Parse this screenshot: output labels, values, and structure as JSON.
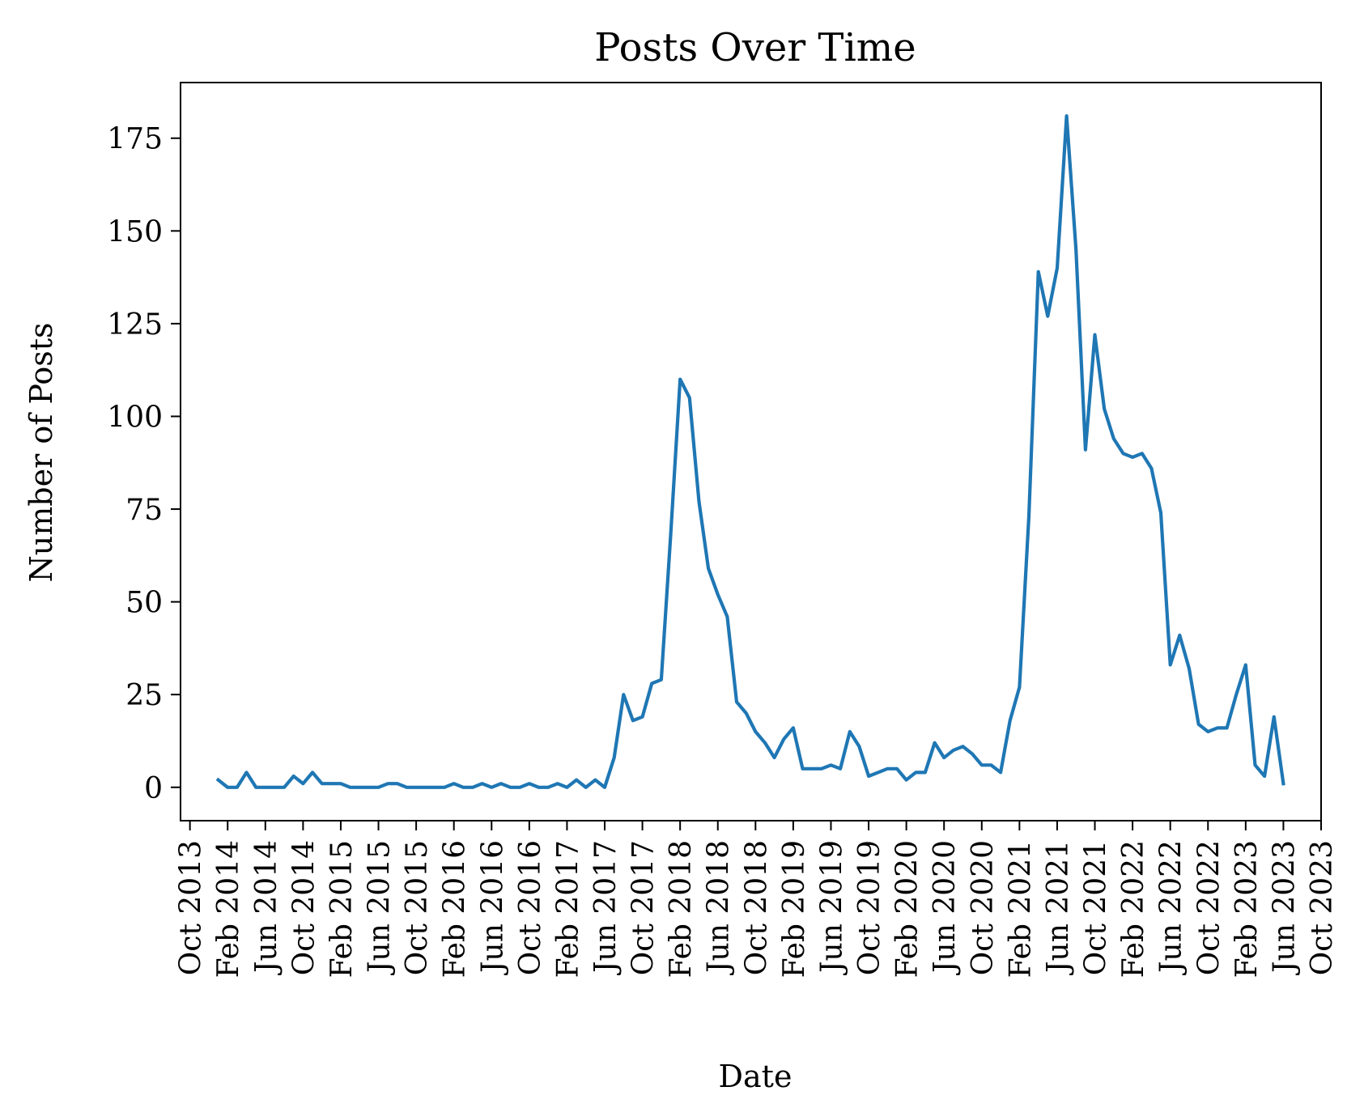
{
  "chart_data": {
    "type": "line",
    "title": "Posts Over Time",
    "xlabel": "Date",
    "ylabel": "Number of Posts",
    "grid": false,
    "legend": false,
    "line_color": "#1f77b4",
    "x_axis_range": [
      "2013-09",
      "2023-10"
    ],
    "ylim": [
      -9,
      190
    ],
    "y_ticks": [
      0,
      25,
      50,
      75,
      100,
      125,
      150,
      175
    ],
    "x_ticks": [
      {
        "date": "2013-10",
        "label": "Oct 2013"
      },
      {
        "date": "2014-02",
        "label": "Feb 2014"
      },
      {
        "date": "2014-06",
        "label": "Jun 2014"
      },
      {
        "date": "2014-10",
        "label": "Oct 2014"
      },
      {
        "date": "2015-02",
        "label": "Feb 2015"
      },
      {
        "date": "2015-06",
        "label": "Jun 2015"
      },
      {
        "date": "2015-10",
        "label": "Oct 2015"
      },
      {
        "date": "2016-02",
        "label": "Feb 2016"
      },
      {
        "date": "2016-06",
        "label": "Jun 2016"
      },
      {
        "date": "2016-10",
        "label": "Oct 2016"
      },
      {
        "date": "2017-02",
        "label": "Feb 2017"
      },
      {
        "date": "2017-06",
        "label": "Jun 2017"
      },
      {
        "date": "2017-10",
        "label": "Oct 2017"
      },
      {
        "date": "2018-02",
        "label": "Feb 2018"
      },
      {
        "date": "2018-06",
        "label": "Jun 2018"
      },
      {
        "date": "2018-10",
        "label": "Oct 2018"
      },
      {
        "date": "2019-02",
        "label": "Feb 2019"
      },
      {
        "date": "2019-06",
        "label": "Jun 2019"
      },
      {
        "date": "2019-10",
        "label": "Oct 2019"
      },
      {
        "date": "2020-02",
        "label": "Feb 2020"
      },
      {
        "date": "2020-06",
        "label": "Jun 2020"
      },
      {
        "date": "2020-10",
        "label": "Oct 2020"
      },
      {
        "date": "2021-02",
        "label": "Feb 2021"
      },
      {
        "date": "2021-06",
        "label": "Jun 2021"
      },
      {
        "date": "2021-10",
        "label": "Oct 2021"
      },
      {
        "date": "2022-02",
        "label": "Feb 2022"
      },
      {
        "date": "2022-06",
        "label": "Jun 2022"
      },
      {
        "date": "2022-10",
        "label": "Oct 2022"
      },
      {
        "date": "2023-02",
        "label": "Feb 2023"
      },
      {
        "date": "2023-06",
        "label": "Jun 2023"
      },
      {
        "date": "2023-10",
        "label": "Oct 2023"
      }
    ],
    "series": [
      {
        "x": [
          "2014-01",
          "2014-02",
          "2014-03",
          "2014-04",
          "2014-05",
          "2014-06",
          "2014-07",
          "2014-08",
          "2014-09",
          "2014-10",
          "2014-11",
          "2014-12",
          "2015-01",
          "2015-02",
          "2015-03",
          "2015-04",
          "2015-05",
          "2015-06",
          "2015-07",
          "2015-08",
          "2015-09",
          "2015-10",
          "2015-11",
          "2015-12",
          "2016-01",
          "2016-02",
          "2016-03",
          "2016-04",
          "2016-05",
          "2016-06",
          "2016-07",
          "2016-08",
          "2016-09",
          "2016-10",
          "2016-11",
          "2016-12",
          "2017-01",
          "2017-02",
          "2017-03",
          "2017-04",
          "2017-05",
          "2017-06",
          "2017-07",
          "2017-08",
          "2017-09",
          "2017-10",
          "2017-11",
          "2017-12",
          "2018-01",
          "2018-02",
          "2018-03",
          "2018-04",
          "2018-05",
          "2018-06",
          "2018-07",
          "2018-08",
          "2018-09",
          "2018-10",
          "2018-11",
          "2018-12",
          "2019-01",
          "2019-02",
          "2019-03",
          "2019-04",
          "2019-05",
          "2019-06",
          "2019-07",
          "2019-08",
          "2019-09",
          "2019-10",
          "2019-11",
          "2019-12",
          "2020-01",
          "2020-02",
          "2020-03",
          "2020-04",
          "2020-05",
          "2020-06",
          "2020-07",
          "2020-08",
          "2020-09",
          "2020-10",
          "2020-11",
          "2020-12",
          "2021-01",
          "2021-02",
          "2021-03",
          "2021-04",
          "2021-05",
          "2021-06",
          "2021-07",
          "2021-08",
          "2021-09",
          "2021-10",
          "2021-11",
          "2021-12",
          "2022-01",
          "2022-02",
          "2022-03",
          "2022-04",
          "2022-05",
          "2022-06",
          "2022-07",
          "2022-08",
          "2022-09",
          "2022-10",
          "2022-11",
          "2022-12",
          "2023-01",
          "2023-02",
          "2023-03",
          "2023-04",
          "2023-05",
          "2023-06"
        ],
        "y": [
          2,
          0,
          0,
          4,
          0,
          0,
          0,
          0,
          3,
          1,
          4,
          1,
          1,
          1,
          0,
          0,
          0,
          0,
          1,
          1,
          0,
          0,
          0,
          0,
          0,
          1,
          0,
          0,
          1,
          0,
          1,
          0,
          0,
          1,
          0,
          0,
          1,
          0,
          2,
          0,
          2,
          0,
          8,
          25,
          18,
          19,
          28,
          29,
          68,
          110,
          105,
          77,
          59,
          52,
          46,
          23,
          20,
          15,
          12,
          8,
          13,
          16,
          5,
          5,
          5,
          6,
          5,
          15,
          11,
          3,
          4,
          5,
          5,
          2,
          4,
          4,
          12,
          8,
          10,
          11,
          9,
          6,
          6,
          4,
          18,
          27,
          73,
          139,
          127,
          140,
          181,
          145,
          91,
          122,
          102,
          94,
          90,
          89,
          90,
          86,
          74,
          33,
          41,
          32,
          17,
          15,
          16,
          16,
          25,
          33,
          6,
          3,
          19,
          1
        ]
      }
    ]
  }
}
